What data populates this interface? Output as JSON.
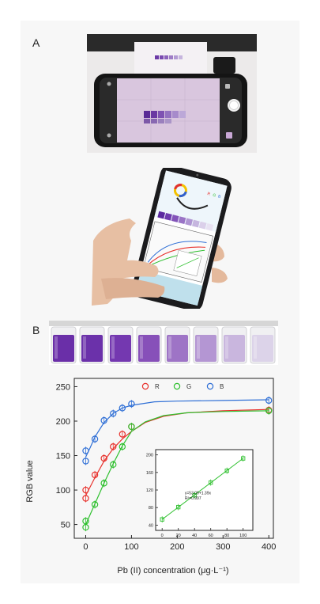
{
  "panels": {
    "a": "A",
    "b": "B"
  },
  "phone_screen": {
    "rgb_labels": [
      "R",
      "G",
      "B"
    ]
  },
  "vials": {
    "colors": [
      "#6a2fa8",
      "#6b31aa",
      "#7438b0",
      "#8750b9",
      "#9e74c6",
      "#b496d3",
      "#c9b6de",
      "#dcd3e9"
    ]
  },
  "colors": {
    "R": "#e8322d",
    "G": "#2fc02f",
    "B": "#2f6fd6",
    "frame": "#f7f7f7"
  },
  "chart_data": [
    {
      "type": "scatter",
      "xlabel": "Pb (II) concentration (μg·L⁻¹)",
      "ylabel": "RGB value",
      "xlim": [
        -25,
        410
      ],
      "ylim": [
        30,
        262
      ],
      "xticks": [
        0,
        100,
        200,
        300,
        400
      ],
      "yticks": [
        50,
        100,
        150,
        200,
        250
      ],
      "legend_position": "top",
      "series": [
        {
          "name": "R",
          "color": "#e8322d",
          "x": [
            0,
            0,
            20,
            40,
            60,
            80,
            100,
            400
          ],
          "y": [
            88,
            100,
            122,
            146,
            163,
            181,
            192,
            216
          ],
          "fit": [
            [
              0,
              92
            ],
            [
              20,
              118
            ],
            [
              40,
              142
            ],
            [
              60,
              160
            ],
            [
              80,
              174
            ],
            [
              100,
              185
            ],
            [
              130,
              198
            ],
            [
              170,
              207
            ],
            [
              220,
              212
            ],
            [
              300,
              215
            ],
            [
              400,
              217
            ]
          ]
        },
        {
          "name": "G",
          "color": "#2fc02f",
          "x": [
            0,
            0,
            20,
            40,
            60,
            80,
            100,
            400
          ],
          "y": [
            46,
            55,
            79,
            110,
            137,
            163,
            192,
            215
          ],
          "fit": [
            [
              0,
              50
            ],
            [
              20,
              80
            ],
            [
              40,
              110
            ],
            [
              60,
              138
            ],
            [
              80,
              164
            ],
            [
              100,
              185
            ],
            [
              130,
              199
            ],
            [
              170,
              208
            ],
            [
              220,
              212
            ],
            [
              300,
              214
            ],
            [
              400,
              215
            ]
          ]
        },
        {
          "name": "B",
          "color": "#2f6fd6",
          "x": [
            0,
            0,
            20,
            40,
            60,
            80,
            100,
            400
          ],
          "y": [
            142,
            157,
            174,
            201,
            211,
            219,
            225,
            230
          ],
          "fit": [
            [
              0,
              148
            ],
            [
              10,
              162
            ],
            [
              20,
              177
            ],
            [
              40,
              198
            ],
            [
              60,
              211
            ],
            [
              80,
              219
            ],
            [
              100,
              223
            ],
            [
              150,
              228
            ],
            [
              200,
              229
            ],
            [
              300,
              230
            ],
            [
              400,
              231
            ]
          ]
        }
      ]
    },
    {
      "type": "scatter",
      "inset": true,
      "xlim": [
        -8,
        112
      ],
      "ylim": [
        28,
        212
      ],
      "xticks": [
        0,
        20,
        40,
        60,
        80,
        100
      ],
      "yticks": [
        40,
        80,
        120,
        160,
        200
      ],
      "annotation": [
        "y=53.09+1.39x",
        "R²=0.997"
      ],
      "series": [
        {
          "color": "#2fc02f",
          "x": [
            0,
            20,
            40,
            60,
            80,
            100
          ],
          "y": [
            53,
            81,
            108,
            137,
            164,
            192
          ],
          "fit": [
            [
              0,
              53.09
            ],
            [
              100,
              192.09
            ]
          ]
        }
      ]
    }
  ]
}
